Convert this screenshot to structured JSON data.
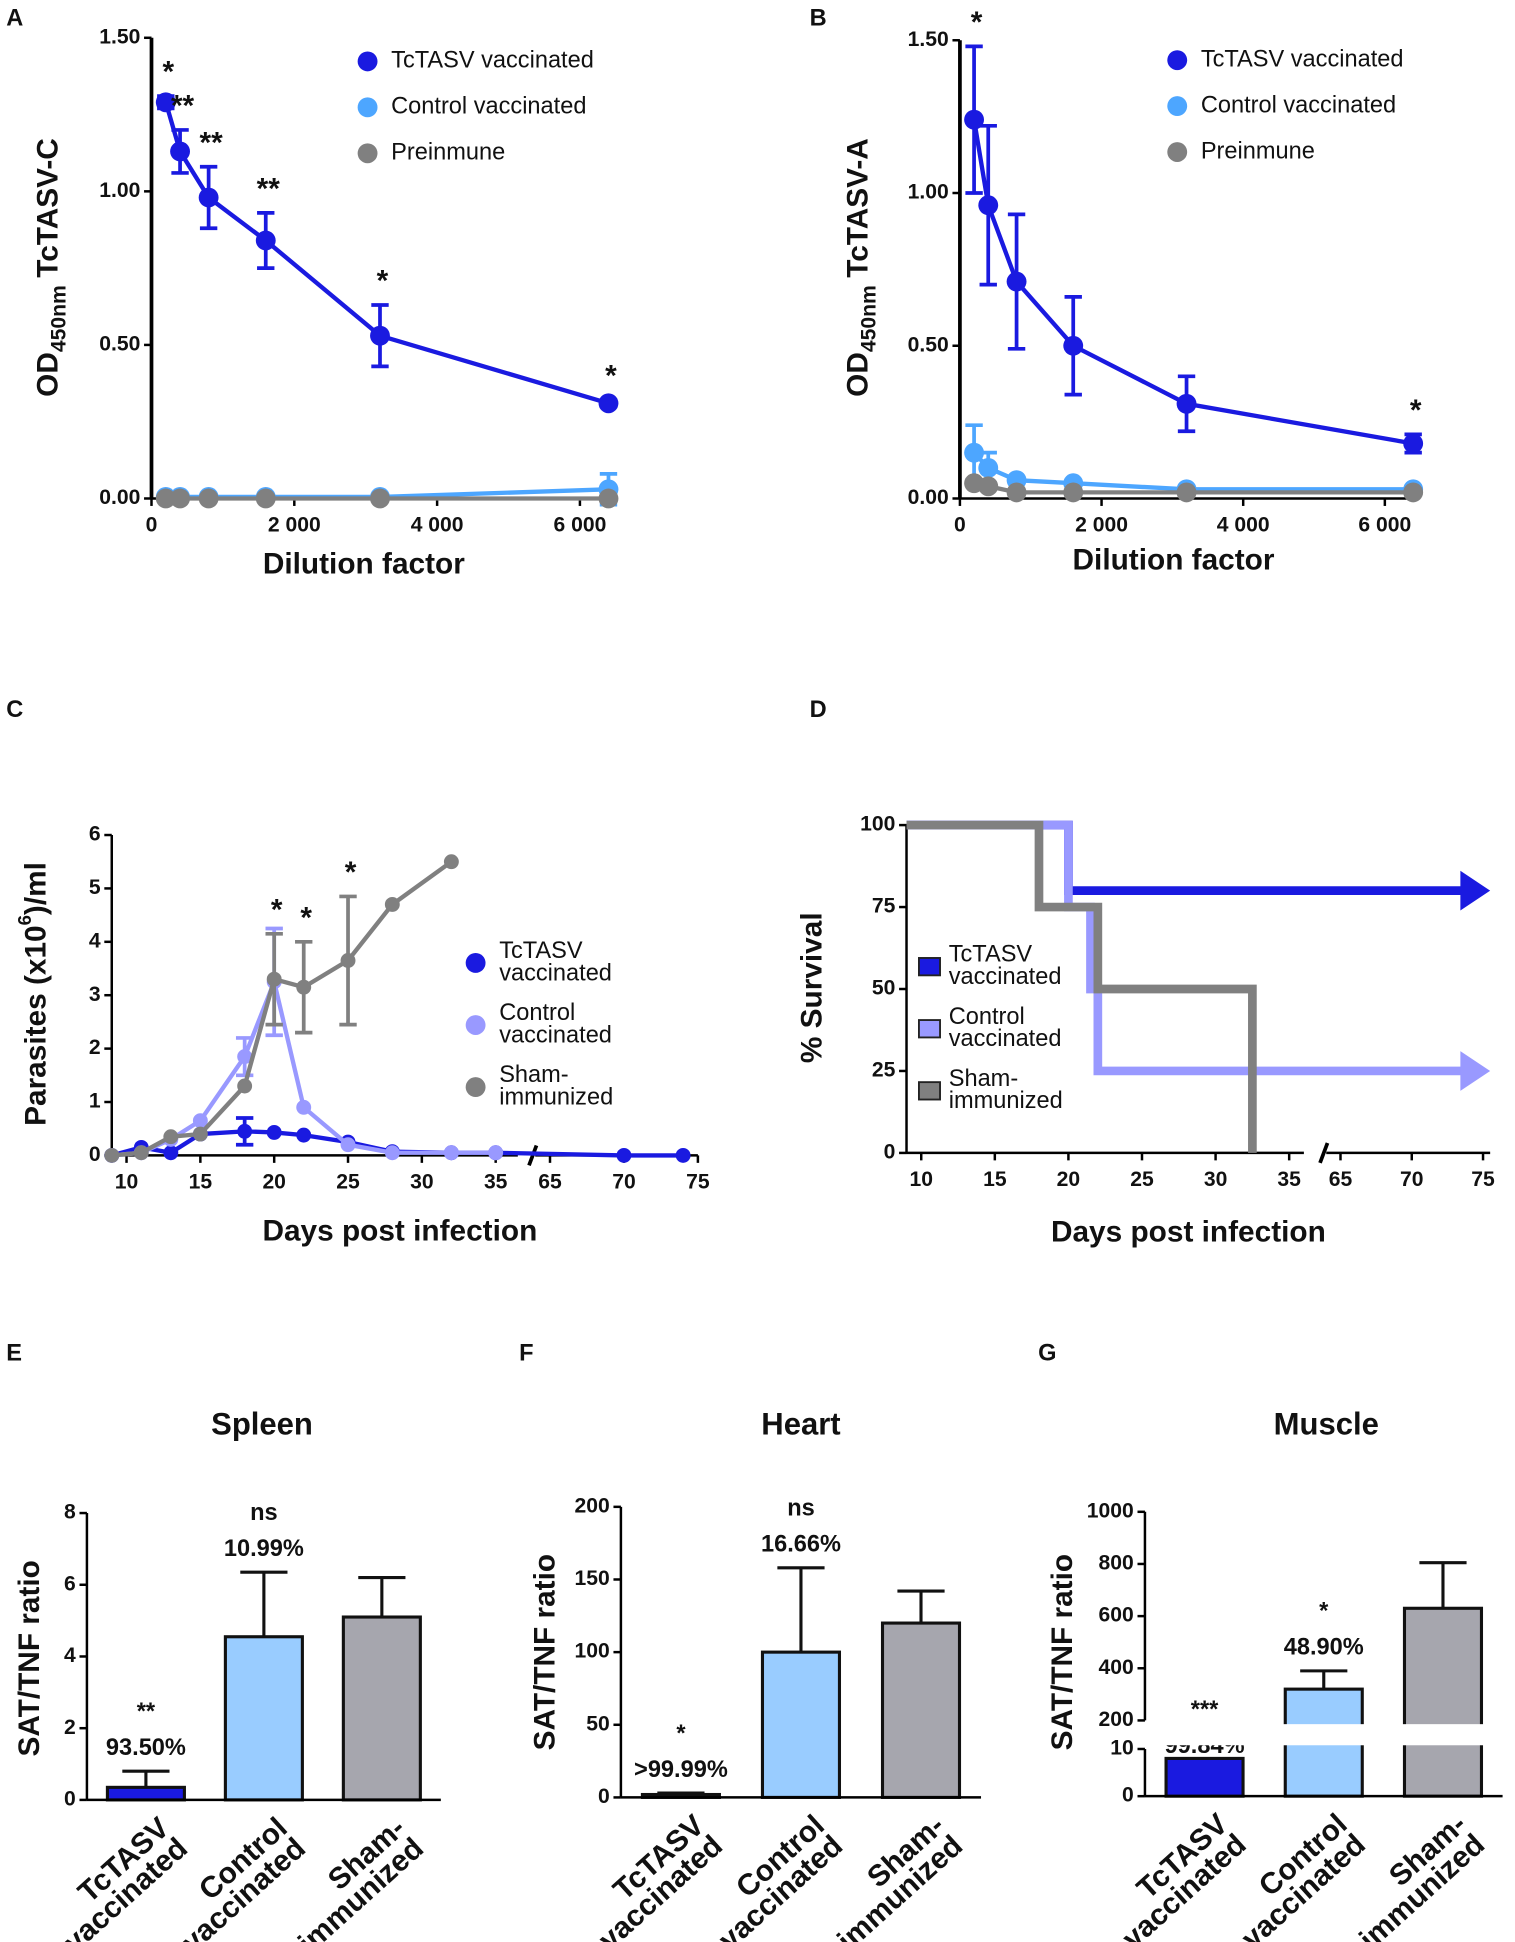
{
  "chart_data": [
    {
      "type": "line",
      "panel": "A",
      "ylabel": {
        "main": "OD",
        "sub": "450nm",
        "rest": "TcTASV-C"
      },
      "xlabel": "Dilution factor",
      "xlim": [
        0,
        6400
      ],
      "xticks": [
        0,
        {
          "value": 2000,
          "label": "2 000"
        },
        {
          "value": 4000,
          "label": "4 000"
        },
        {
          "value": 6000,
          "label": "6 000"
        }
      ],
      "ylim": [
        0,
        1.5
      ],
      "yticks": [
        {
          "value": 0,
          "label": "0.00"
        },
        {
          "value": 0.5,
          "label": "0.50"
        },
        {
          "value": 1,
          "label": "1.00"
        },
        {
          "value": 1.5,
          "label": "1.50"
        }
      ],
      "series": [
        {
          "name": "TcTASV vaccinated",
          "color": "#1a1ae0",
          "x": [
            200,
            400,
            800,
            1600,
            3200,
            6400
          ],
          "values": [
            1.29,
            1.13,
            0.98,
            0.84,
            0.53,
            0.31
          ],
          "errors": [
            0.02,
            0.07,
            0.1,
            0.09,
            0.1,
            0.01
          ],
          "stars": [
            "*",
            "**",
            "**",
            "**",
            "*",
            "*"
          ]
        },
        {
          "name": "Control vaccinated",
          "color": "#4da6ff",
          "x": [
            200,
            400,
            800,
            1600,
            3200,
            6400
          ],
          "values": [
            0.005,
            0.005,
            0.005,
            0.005,
            0.005,
            0.03
          ],
          "errors": [
            null,
            null,
            null,
            null,
            null,
            0.05
          ]
        },
        {
          "name": "Preinmune",
          "color": "#808080",
          "x": [
            200,
            400,
            800,
            1600,
            3200,
            6400
          ],
          "values": [
            0,
            0,
            0,
            0,
            0,
            0
          ]
        }
      ]
    },
    {
      "type": "line",
      "panel": "B",
      "ylabel": {
        "main": "OD",
        "sub": "450nm",
        "rest": "TcTASV-A"
      },
      "xlabel": "Dilution factor",
      "xlim": [
        0,
        6400
      ],
      "xticks": [
        0,
        {
          "value": 2000,
          "label": "2 000"
        },
        {
          "value": 4000,
          "label": "4 000"
        },
        {
          "value": 6000,
          "label": "6 000"
        }
      ],
      "ylim": [
        0,
        1.5
      ],
      "yticks": [
        {
          "value": 0,
          "label": "0.00"
        },
        {
          "value": 0.5,
          "label": "0.50"
        },
        {
          "value": 1,
          "label": "1.00"
        },
        {
          "value": 1.5,
          "label": "1.50"
        }
      ],
      "series": [
        {
          "name": "TcTASV vaccinated",
          "color": "#1a1ae0",
          "x": [
            200,
            400,
            800,
            1600,
            3200,
            6400
          ],
          "values": [
            1.24,
            0.96,
            0.71,
            0.5,
            0.31,
            0.18
          ],
          "errors": [
            0.24,
            0.26,
            0.22,
            0.16,
            0.09,
            0.03
          ],
          "stars": [
            "*",
            null,
            null,
            null,
            null,
            "*"
          ]
        },
        {
          "name": "Control vaccinated",
          "color": "#4da6ff",
          "x": [
            200,
            400,
            800,
            1600,
            3200,
            6400
          ],
          "values": [
            0.15,
            0.1,
            0.06,
            0.05,
            0.03,
            0.03
          ],
          "errors": [
            0.09,
            0.05,
            null,
            null,
            null,
            null
          ]
        },
        {
          "name": "Preinmune",
          "color": "#808080",
          "x": [
            200,
            400,
            800,
            1600,
            3200,
            6400
          ],
          "values": [
            0.05,
            0.04,
            0.02,
            0.02,
            0.02,
            0.02
          ]
        }
      ]
    },
    {
      "type": "line",
      "panel": "C",
      "ylabel": {
        "main": "Parasites (x10",
        "sup": "6",
        "rest": ")/ml"
      },
      "xlabel": "Days post infection",
      "xlim": [
        [
          9,
          36.5
        ],
        [
          64,
          75
        ]
      ],
      "xticks": [
        10,
        15,
        20,
        25,
        30,
        35,
        65,
        70,
        75
      ],
      "ylim": [
        0,
        6
      ],
      "yticks": [
        0,
        1,
        2,
        3,
        4,
        5,
        6
      ],
      "series": [
        {
          "name": [
            "TcTASV",
            "vaccinated"
          ],
          "color": "#1a1ae0",
          "x": [
            9,
            11,
            13,
            15,
            18,
            20,
            22,
            25,
            28,
            32,
            35,
            70,
            74
          ],
          "values": [
            0,
            0.15,
            0.05,
            0.4,
            0.45,
            0.43,
            0.38,
            0.25,
            0.07,
            0.05,
            0.05,
            0,
            0
          ],
          "errors": [
            null,
            null,
            null,
            null,
            0.25,
            null,
            null,
            null,
            null,
            null,
            null,
            null,
            null
          ]
        },
        {
          "name": [
            "Control",
            "vaccinated"
          ],
          "color": "#9999ff",
          "x": [
            9,
            11,
            13,
            15,
            18,
            20,
            22,
            25,
            28,
            32,
            35
          ],
          "values": [
            0,
            0.05,
            0.3,
            0.65,
            1.85,
            3.25,
            0.9,
            0.2,
            0.05,
            0.05,
            0.05
          ],
          "errors": [
            null,
            null,
            null,
            null,
            0.35,
            1.0,
            null,
            null,
            null,
            null,
            null
          ]
        },
        {
          "name": [
            "Sham-",
            "immunized"
          ],
          "color": "#808080",
          "x": [
            9,
            11,
            13,
            15,
            18,
            20,
            22,
            25,
            28,
            32
          ],
          "values": [
            0,
            0.05,
            0.35,
            0.4,
            1.3,
            3.3,
            3.15,
            3.65,
            4.7,
            5.5
          ],
          "errors": [
            null,
            null,
            null,
            null,
            null,
            0.85,
            0.85,
            1.2,
            null,
            null
          ],
          "stars": [
            null,
            null,
            null,
            null,
            null,
            "*",
            "*",
            "*",
            null,
            null
          ]
        }
      ]
    },
    {
      "type": "step",
      "panel": "D",
      "ylabel": "% Survival",
      "xlabel": "Days post infection",
      "xlim": [
        [
          9,
          36
        ],
        [
          64,
          75.5
        ]
      ],
      "xticks": [
        10,
        15,
        20,
        25,
        30,
        35,
        65,
        70,
        75
      ],
      "ylim": [
        0,
        100
      ],
      "yticks": [
        0,
        25,
        50,
        75,
        100
      ],
      "series": [
        {
          "name": [
            "TcTASV",
            "vaccinated"
          ],
          "color": "#1a1ae0",
          "x": [
            9,
            20
          ],
          "values": [
            100,
            80
          ]
        },
        {
          "name": [
            "Control",
            "vaccinated"
          ],
          "color": "#9999ff",
          "x": [
            9,
            20,
            21.5,
            22
          ],
          "values": [
            100,
            75,
            50,
            25
          ]
        },
        {
          "name": [
            "Sham-",
            "immunized"
          ],
          "color": "#808080",
          "x": [
            9,
            18,
            22,
            32.5
          ],
          "values": [
            100,
            75,
            50,
            0
          ]
        }
      ]
    },
    {
      "type": "bar",
      "panel": "E",
      "title": "Spleen",
      "ylabel": "SAT/TNF ratio",
      "ylim": [
        0,
        8
      ],
      "yticks": [
        0,
        2,
        4,
        6,
        8
      ],
      "categories": [
        [
          "TcTASV",
          "vaccinated"
        ],
        [
          "Control",
          "vaccinated"
        ],
        [
          "Sham-",
          "immunized"
        ]
      ],
      "values": [
        0.35,
        4.55,
        5.1
      ],
      "errors": [
        0.45,
        1.8,
        1.1
      ],
      "colors": [
        "#1a1ae0",
        "#99ccff",
        "#a6a6ae"
      ],
      "significance": [
        "**",
        "ns",
        null
      ],
      "reduction_labels": [
        "93.50%",
        "10.99%",
        null
      ]
    },
    {
      "type": "bar",
      "panel": "F",
      "title": "Heart",
      "ylabel": "SAT/TNF ratio",
      "ylim": [
        0,
        200
      ],
      "yticks": [
        0,
        50,
        100,
        150,
        200
      ],
      "categories": [
        [
          "TcTASV",
          "vaccinated"
        ],
        [
          "Control",
          "vaccinated"
        ],
        [
          "Sham-",
          "immunized"
        ]
      ],
      "values": [
        2,
        100,
        120
      ],
      "errors": [
        1,
        58,
        22
      ],
      "colors": [
        "#1a1ae0",
        "#99ccff",
        "#a6a6ae"
      ],
      "significance": [
        "*",
        "ns",
        null
      ],
      "reduction_labels": [
        ">99.99%",
        "16.66%",
        null
      ]
    },
    {
      "type": "bar",
      "panel": "G",
      "title": "Muscle",
      "ylabel": "SAT/TNF ratio",
      "ylim": [
        [
          0,
          10
        ],
        [
          200,
          1000
        ]
      ],
      "yticks": [
        0,
        10,
        200,
        400,
        600,
        800,
        1000
      ],
      "categories": [
        [
          "TcTASV",
          "vaccinated"
        ],
        [
          "Control",
          "vaccinated"
        ],
        [
          "Sham-",
          "immunized"
        ]
      ],
      "values": [
        8,
        320,
        630
      ],
      "errors": [
        5,
        70,
        175
      ],
      "colors": [
        "#1a1ae0",
        "#99ccff",
        "#a6a6ae"
      ],
      "significance": [
        "***",
        "*",
        null
      ],
      "reduction_labels": [
        "99.84%",
        "48.90%",
        null
      ]
    }
  ]
}
